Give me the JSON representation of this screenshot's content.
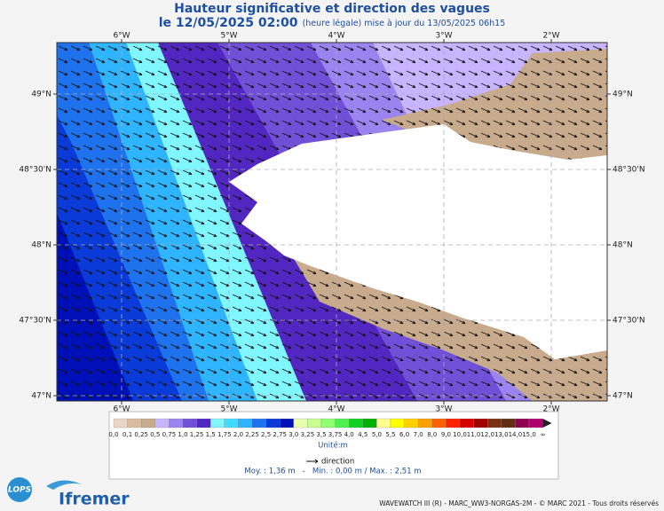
{
  "header": {
    "title": "Hauteur significative et direction des vagues",
    "date": "le 12/05/2025 02:00",
    "update": "(heure légale) mise à jour du 13/05/2025 06h15"
  },
  "map": {
    "lon_labels": [
      "6°W",
      "5°W",
      "4°W",
      "3°W",
      "2°W"
    ],
    "lat_labels": [
      "49°N",
      "48°30'N",
      "48°N",
      "47°30'N",
      "47°N"
    ]
  },
  "colorbar": {
    "labels": [
      "0,0",
      "0,1",
      "0,25",
      "0,5",
      "0,75",
      "1,0",
      "1,25",
      "1,5",
      "1,75",
      "2,0",
      "2,25",
      "2,5",
      "2,75",
      "3,0",
      "3,25",
      "3,5",
      "3,75",
      "4,0",
      "4,5",
      "5,0",
      "5,5",
      "6,0",
      "7,0",
      "8,0",
      "9,0",
      "10,0",
      "11,0",
      "12,0",
      "13,0",
      "14,0",
      "15,0",
      "∞"
    ],
    "colors": [
      "#e9d6c4",
      "#d8bca2",
      "#c8aa8c",
      "#c8b4ff",
      "#9c84f0",
      "#7150d8",
      "#5226c0",
      "#80f6ff",
      "#40dcff",
      "#2fb4ff",
      "#1f72ee",
      "#0a3ad8",
      "#0010b8",
      "#e8ffb0",
      "#c8ff90",
      "#90ff70",
      "#50f050",
      "#10d020",
      "#00b000",
      "#ffff90",
      "#ffff00",
      "#ffd000",
      "#ffa000",
      "#ff6000",
      "#ff2000",
      "#d80000",
      "#a00000",
      "#7a3010",
      "#603010",
      "#900050",
      "#b00070"
    ],
    "unit": "Unité:m",
    "arrow_label": "direction"
  },
  "stats": "Moy. : 1,36 m   -   Min. : 0,00 m / Max. : 2,51 m",
  "logos": {
    "lops": "LOPS",
    "ifremer": "Ifremer"
  },
  "footer": "WAVEWATCH III (R) - MARC_WW3-NORGAS-2M - © MARC 2021 - Tous droits réservés"
}
